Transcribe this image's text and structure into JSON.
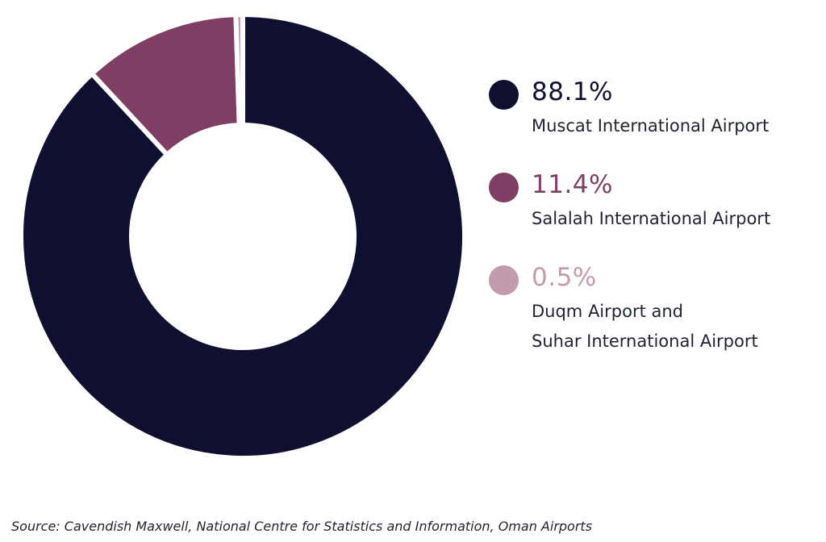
{
  "chart_data": {
    "type": "pie",
    "variant": "donut",
    "title": "",
    "slices": [
      {
        "label": "Muscat International Airport",
        "value": 88.1,
        "display": "88.1%",
        "color": "#0f1030"
      },
      {
        "label": "Salalah International Airport",
        "value": 11.4,
        "display": "11.4%",
        "color": "#7f3e64"
      },
      {
        "label": "Duqm Airport and\nSuhar International Airport",
        "value": 0.5,
        "display": "0.5%",
        "color": "#c49aae"
      }
    ],
    "legend_placement": "right"
  },
  "source": "Source: Cavendish Maxwell, National Centre for Statistics and Information, Oman Airports"
}
